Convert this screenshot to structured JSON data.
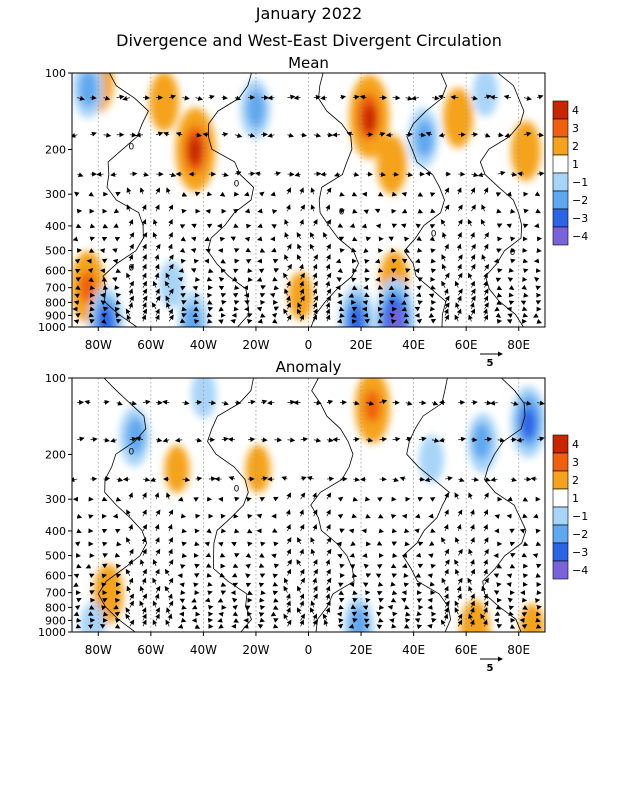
{
  "figure": {
    "title": "January 2022",
    "subtitle": "Divergence and West-East Divergent Circulation"
  },
  "chart_data": [
    {
      "type": "heatmap",
      "title": "Mean",
      "x_range": [
        -90,
        90
      ],
      "x_ticks": [
        -80,
        -60,
        -40,
        -20,
        0,
        20,
        40,
        60,
        80
      ],
      "x_tick_labels": [
        "80W",
        "60W",
        "40W",
        "20W",
        "0",
        "20E",
        "40E",
        "60E",
        "80E"
      ],
      "y_scale": "log",
      "y_range": [
        1000,
        100
      ],
      "y_ticks": [
        100,
        200,
        300,
        400,
        500,
        600,
        700,
        800,
        900,
        1000
      ],
      "y_tick_labels": [
        "100",
        "200",
        "300",
        "400",
        "500",
        "600",
        "700",
        "800",
        "900",
        "1000"
      ],
      "color_levels": [
        -4,
        -3,
        -2,
        -1,
        1,
        2,
        3,
        4
      ],
      "colorbar_labels": [
        "4",
        "3",
        "2",
        "1",
        "−1",
        "−2",
        "−3",
        "−4"
      ],
      "contour_labels": [
        "0",
        "0",
        "0",
        "0",
        "0",
        "0"
      ],
      "vector_reference": {
        "value": 5,
        "label": "5"
      },
      "features": [
        {
          "lon": -43,
          "p": 200,
          "value": 4
        },
        {
          "lon": -55,
          "p": 130,
          "value": 2
        },
        {
          "lon": -80,
          "p": 110,
          "value": 2
        },
        {
          "lon": 23,
          "p": 150,
          "value": 4
        },
        {
          "lon": 32,
          "p": 230,
          "value": 2
        },
        {
          "lon": 57,
          "p": 150,
          "value": 2
        },
        {
          "lon": 83,
          "p": 200,
          "value": 2
        },
        {
          "lon": -84,
          "p": 700,
          "value": 3
        },
        {
          "lon": 33,
          "p": 650,
          "value": 2
        },
        {
          "lon": -3,
          "p": 760,
          "value": 1
        },
        {
          "lon": -84,
          "p": 115,
          "value": -2
        },
        {
          "lon": -20,
          "p": 140,
          "value": -2
        },
        {
          "lon": 44,
          "p": 180,
          "value": -2
        },
        {
          "lon": 67,
          "p": 120,
          "value": -1
        },
        {
          "lon": -52,
          "p": 680,
          "value": -1
        },
        {
          "lon": -77,
          "p": 960,
          "value": -3
        },
        {
          "lon": -44,
          "p": 960,
          "value": -2
        },
        {
          "lon": 18,
          "p": 940,
          "value": -3
        },
        {
          "lon": 33,
          "p": 950,
          "value": -4
        }
      ]
    },
    {
      "type": "heatmap",
      "title": "Anomaly",
      "x_range": [
        -90,
        90
      ],
      "x_ticks": [
        -80,
        -60,
        -40,
        -20,
        0,
        20,
        40,
        60,
        80
      ],
      "x_tick_labels": [
        "80W",
        "60W",
        "40W",
        "20W",
        "0",
        "20E",
        "40E",
        "60E",
        "80E"
      ],
      "y_scale": "log",
      "y_range": [
        1000,
        100
      ],
      "y_ticks": [
        100,
        200,
        300,
        400,
        500,
        600,
        700,
        800,
        900,
        1000
      ],
      "y_tick_labels": [
        "100",
        "200",
        "300",
        "400",
        "500",
        "600",
        "700",
        "800",
        "900",
        "1000"
      ],
      "color_levels": [
        -4,
        -3,
        -2,
        -1,
        1,
        2,
        3,
        4
      ],
      "colorbar_labels": [
        "4",
        "3",
        "2",
        "1",
        "−1",
        "−2",
        "−3",
        "−4"
      ],
      "contour_labels": [
        "0",
        "0"
      ],
      "vector_reference": {
        "value": 5,
        "label": "5"
      },
      "features": [
        {
          "lon": 24,
          "p": 130,
          "value": 3
        },
        {
          "lon": -50,
          "p": 230,
          "value": 1
        },
        {
          "lon": -19,
          "p": 230,
          "value": 1
        },
        {
          "lon": -76,
          "p": 700,
          "value": 2
        },
        {
          "lon": 63,
          "p": 970,
          "value": 2
        },
        {
          "lon": 85,
          "p": 960,
          "value": 1
        },
        {
          "lon": 84,
          "p": 150,
          "value": -3
        },
        {
          "lon": 66,
          "p": 180,
          "value": -2
        },
        {
          "lon": -66,
          "p": 170,
          "value": -2
        },
        {
          "lon": -40,
          "p": 115,
          "value": -1
        },
        {
          "lon": 47,
          "p": 210,
          "value": -1
        },
        {
          "lon": -82,
          "p": 950,
          "value": -1
        },
        {
          "lon": 19,
          "p": 950,
          "value": -2
        }
      ]
    }
  ],
  "colors": {
    "pos4": "#c82600",
    "pos3": "#ef5f10",
    "pos2": "#f5a31e",
    "pos1": "#ffffff",
    "neg1": "#a8d4f8",
    "neg2": "#5fa7ef",
    "neg3": "#2d64e6",
    "neg4": "#7a63d9"
  }
}
